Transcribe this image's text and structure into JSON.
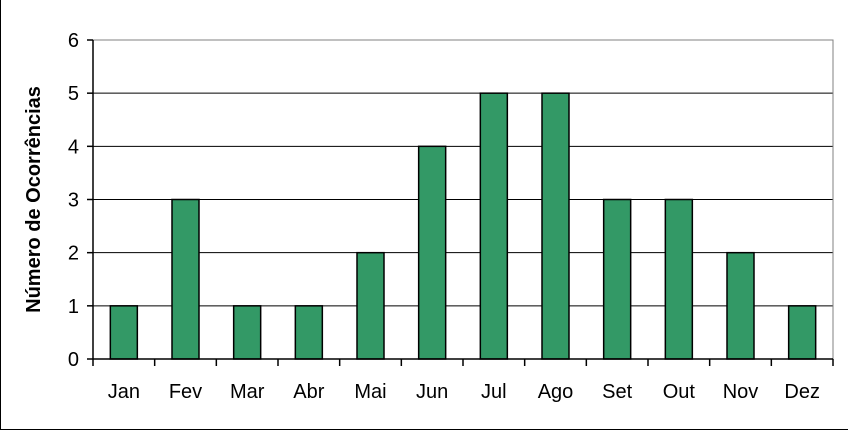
{
  "chart_data": {
    "type": "bar",
    "title": "",
    "xlabel": "",
    "ylabel": "Número de Ocorrências",
    "categories": [
      "Jan",
      "Fev",
      "Mar",
      "Abr",
      "Mai",
      "Jun",
      "Jul",
      "Ago",
      "Set",
      "Out",
      "Nov",
      "Dez"
    ],
    "values": [
      1,
      3,
      1,
      1,
      2,
      4,
      5,
      5,
      3,
      3,
      2,
      1
    ],
    "ylim": [
      0,
      6
    ],
    "yticks": [
      "0",
      "1",
      "2",
      "3",
      "4",
      "5",
      "6"
    ],
    "grid": true,
    "legend": "none",
    "bar_color": "#339966",
    "plot_background": "#ffffff"
  }
}
